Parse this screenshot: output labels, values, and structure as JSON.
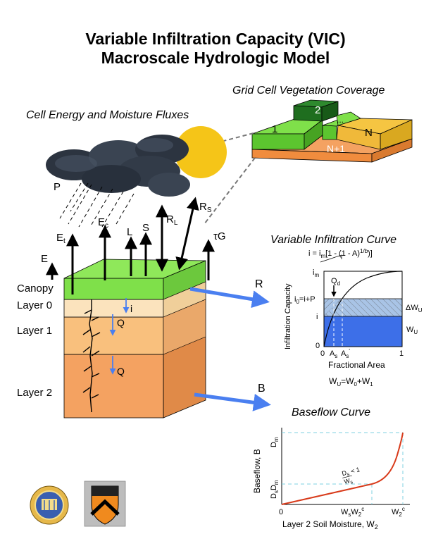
{
  "title": {
    "line1": "Variable Infiltration Capacity (VIC)",
    "line2": "Macroscale Hydrologic Model"
  },
  "grid_cell": {
    "heading": "Grid Cell Vegetation Coverage",
    "tiles": [
      "1",
      "2",
      "...",
      "N",
      "N+1"
    ]
  },
  "energy": {
    "heading": "Cell Energy and Moisture Fluxes",
    "precip": "P",
    "fluxes": {
      "E": "E",
      "Et": "E",
      "Et_sub": "t",
      "Ec": "E",
      "Ec_sub": "c",
      "L": "L",
      "S": "S",
      "RL": "R",
      "RL_sub": "L",
      "Rs": "R",
      "Rs_sub": "S",
      "tauG": "τG"
    }
  },
  "column": {
    "layers": [
      "Canopy",
      "Layer 0",
      "Layer 1",
      "Layer 2"
    ],
    "flux_i": "i",
    "flux_Q1": "Q",
    "flux_Q2": "Q",
    "runoff": "R",
    "baseflow": "B"
  },
  "infiltration": {
    "heading": "Variable Infiltration Curve",
    "equation": "i = i",
    "equation_sub": "m",
    "equation_rest": "[1 - (1 - A)",
    "equation_sup": "1/b",
    "equation_end": ")]",
    "ylabel": "Infiltration Capacity",
    "xlabel": "Fractional Area",
    "im": "i",
    "im_sub": "m",
    "i0": "i",
    "i0_sub": "0",
    "i0_rest": "=i+P",
    "i": "i",
    "zero": "0",
    "Qd": "Q",
    "Qd_sub": "d",
    "As": "A",
    "As_sub": "s",
    "As2": "A",
    "As2_sub": "s",
    "As2_sup": "'",
    "x0": "0",
    "x1": "1",
    "dWu": "ΔW",
    "dWu_sub": "U",
    "Wu": "W",
    "Wu_sub": "U",
    "balance": "W",
    "balance_sub1": "U",
    "balance_mid": "=W",
    "balance_sub2": "0",
    "balance_mid2": "+W",
    "balance_sub3": "1",
    "colors": {
      "stored": "#3d6fe8",
      "added": "#a9c4e6"
    }
  },
  "baseflow": {
    "heading": "Baseflow Curve",
    "ylabel": "Baseflow, B",
    "xlabel": "Layer 2 Soil Moisture, W",
    "xlabel_sub": "2",
    "Dm": "D",
    "Dm_sub": "m",
    "DsDm": "D",
    "DsDm_sub1": "s",
    "DsDm_mid": "D",
    "DsDm_sub2": "m",
    "slope_num": "D",
    "slope_num_sub": "s",
    "slope_den": "W",
    "slope_den_sub": "s",
    "slope_rest": "< 1",
    "origin": "0",
    "WsW2c": "W",
    "WsW2c_sub": "s",
    "WsW2c_mid": "W",
    "WsW2c_sub2": "2",
    "WsW2c_sup": "c",
    "W2c": "W",
    "W2c_sub": "2",
    "W2c_sup": "c",
    "colors": {
      "curve": "#d83a1a",
      "guide": "#7fd0e0"
    }
  },
  "colors": {
    "canopy": "#7fe04a",
    "layer0": "#fbe3bd",
    "layer1": "#f9c07d",
    "layer2": "#f4a261",
    "arrow_blue": "#4a7ff0",
    "sun": "#f5c518",
    "cloud": "#2c3440"
  }
}
